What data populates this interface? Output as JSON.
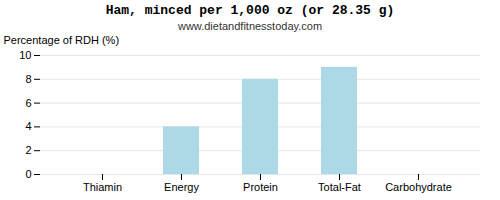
{
  "chart_data": {
    "type": "bar",
    "title": "Ham, minced per 1,000 oz (or 28.35 g)",
    "subtitle": "www.dietandfitnesstoday.com",
    "categories": [
      "Thiamin",
      "Energy",
      "Protein",
      "Total-Fat",
      "Carbohydrate"
    ],
    "values": [
      0,
      4,
      8,
      9,
      0
    ],
    "color": "#ADD8E6",
    "ylabel": "Percentage of RDH (%)",
    "ylim": [
      0,
      10
    ],
    "yticks": [
      0,
      2,
      4,
      6,
      8,
      10
    ],
    "grid": true
  }
}
